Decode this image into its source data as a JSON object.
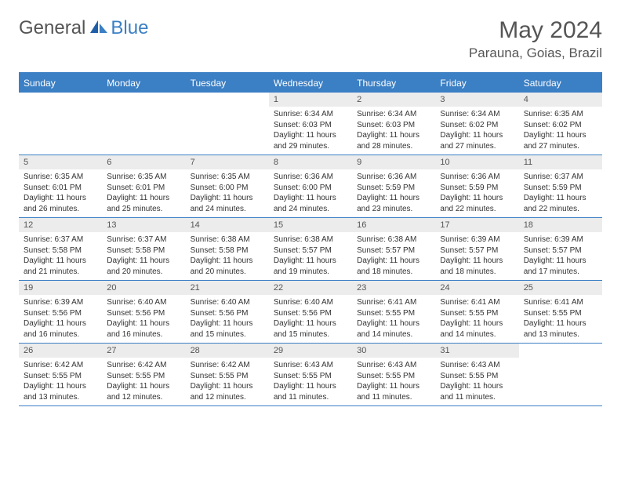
{
  "brand": {
    "part1": "General",
    "part2": "Blue"
  },
  "title": "May 2024",
  "location": "Parauna, Goias, Brazil",
  "colors": {
    "accent": "#3b7fc4",
    "text_muted": "#555555",
    "text_body": "#333333",
    "day_num_bg": "#ececec",
    "background": "#ffffff"
  },
  "day_headers": [
    "Sunday",
    "Monday",
    "Tuesday",
    "Wednesday",
    "Thursday",
    "Friday",
    "Saturday"
  ],
  "weeks": [
    [
      {
        "empty": true
      },
      {
        "empty": true
      },
      {
        "empty": true
      },
      {
        "num": "1",
        "sunrise": "Sunrise: 6:34 AM",
        "sunset": "Sunset: 6:03 PM",
        "day1": "Daylight: 11 hours",
        "day2": "and 29 minutes."
      },
      {
        "num": "2",
        "sunrise": "Sunrise: 6:34 AM",
        "sunset": "Sunset: 6:03 PM",
        "day1": "Daylight: 11 hours",
        "day2": "and 28 minutes."
      },
      {
        "num": "3",
        "sunrise": "Sunrise: 6:34 AM",
        "sunset": "Sunset: 6:02 PM",
        "day1": "Daylight: 11 hours",
        "day2": "and 27 minutes."
      },
      {
        "num": "4",
        "sunrise": "Sunrise: 6:35 AM",
        "sunset": "Sunset: 6:02 PM",
        "day1": "Daylight: 11 hours",
        "day2": "and 27 minutes."
      }
    ],
    [
      {
        "num": "5",
        "sunrise": "Sunrise: 6:35 AM",
        "sunset": "Sunset: 6:01 PM",
        "day1": "Daylight: 11 hours",
        "day2": "and 26 minutes."
      },
      {
        "num": "6",
        "sunrise": "Sunrise: 6:35 AM",
        "sunset": "Sunset: 6:01 PM",
        "day1": "Daylight: 11 hours",
        "day2": "and 25 minutes."
      },
      {
        "num": "7",
        "sunrise": "Sunrise: 6:35 AM",
        "sunset": "Sunset: 6:00 PM",
        "day1": "Daylight: 11 hours",
        "day2": "and 24 minutes."
      },
      {
        "num": "8",
        "sunrise": "Sunrise: 6:36 AM",
        "sunset": "Sunset: 6:00 PM",
        "day1": "Daylight: 11 hours",
        "day2": "and 24 minutes."
      },
      {
        "num": "9",
        "sunrise": "Sunrise: 6:36 AM",
        "sunset": "Sunset: 5:59 PM",
        "day1": "Daylight: 11 hours",
        "day2": "and 23 minutes."
      },
      {
        "num": "10",
        "sunrise": "Sunrise: 6:36 AM",
        "sunset": "Sunset: 5:59 PM",
        "day1": "Daylight: 11 hours",
        "day2": "and 22 minutes."
      },
      {
        "num": "11",
        "sunrise": "Sunrise: 6:37 AM",
        "sunset": "Sunset: 5:59 PM",
        "day1": "Daylight: 11 hours",
        "day2": "and 22 minutes."
      }
    ],
    [
      {
        "num": "12",
        "sunrise": "Sunrise: 6:37 AM",
        "sunset": "Sunset: 5:58 PM",
        "day1": "Daylight: 11 hours",
        "day2": "and 21 minutes."
      },
      {
        "num": "13",
        "sunrise": "Sunrise: 6:37 AM",
        "sunset": "Sunset: 5:58 PM",
        "day1": "Daylight: 11 hours",
        "day2": "and 20 minutes."
      },
      {
        "num": "14",
        "sunrise": "Sunrise: 6:38 AM",
        "sunset": "Sunset: 5:58 PM",
        "day1": "Daylight: 11 hours",
        "day2": "and 20 minutes."
      },
      {
        "num": "15",
        "sunrise": "Sunrise: 6:38 AM",
        "sunset": "Sunset: 5:57 PM",
        "day1": "Daylight: 11 hours",
        "day2": "and 19 minutes."
      },
      {
        "num": "16",
        "sunrise": "Sunrise: 6:38 AM",
        "sunset": "Sunset: 5:57 PM",
        "day1": "Daylight: 11 hours",
        "day2": "and 18 minutes."
      },
      {
        "num": "17",
        "sunrise": "Sunrise: 6:39 AM",
        "sunset": "Sunset: 5:57 PM",
        "day1": "Daylight: 11 hours",
        "day2": "and 18 minutes."
      },
      {
        "num": "18",
        "sunrise": "Sunrise: 6:39 AM",
        "sunset": "Sunset: 5:57 PM",
        "day1": "Daylight: 11 hours",
        "day2": "and 17 minutes."
      }
    ],
    [
      {
        "num": "19",
        "sunrise": "Sunrise: 6:39 AM",
        "sunset": "Sunset: 5:56 PM",
        "day1": "Daylight: 11 hours",
        "day2": "and 16 minutes."
      },
      {
        "num": "20",
        "sunrise": "Sunrise: 6:40 AM",
        "sunset": "Sunset: 5:56 PM",
        "day1": "Daylight: 11 hours",
        "day2": "and 16 minutes."
      },
      {
        "num": "21",
        "sunrise": "Sunrise: 6:40 AM",
        "sunset": "Sunset: 5:56 PM",
        "day1": "Daylight: 11 hours",
        "day2": "and 15 minutes."
      },
      {
        "num": "22",
        "sunrise": "Sunrise: 6:40 AM",
        "sunset": "Sunset: 5:56 PM",
        "day1": "Daylight: 11 hours",
        "day2": "and 15 minutes."
      },
      {
        "num": "23",
        "sunrise": "Sunrise: 6:41 AM",
        "sunset": "Sunset: 5:55 PM",
        "day1": "Daylight: 11 hours",
        "day2": "and 14 minutes."
      },
      {
        "num": "24",
        "sunrise": "Sunrise: 6:41 AM",
        "sunset": "Sunset: 5:55 PM",
        "day1": "Daylight: 11 hours",
        "day2": "and 14 minutes."
      },
      {
        "num": "25",
        "sunrise": "Sunrise: 6:41 AM",
        "sunset": "Sunset: 5:55 PM",
        "day1": "Daylight: 11 hours",
        "day2": "and 13 minutes."
      }
    ],
    [
      {
        "num": "26",
        "sunrise": "Sunrise: 6:42 AM",
        "sunset": "Sunset: 5:55 PM",
        "day1": "Daylight: 11 hours",
        "day2": "and 13 minutes."
      },
      {
        "num": "27",
        "sunrise": "Sunrise: 6:42 AM",
        "sunset": "Sunset: 5:55 PM",
        "day1": "Daylight: 11 hours",
        "day2": "and 12 minutes."
      },
      {
        "num": "28",
        "sunrise": "Sunrise: 6:42 AM",
        "sunset": "Sunset: 5:55 PM",
        "day1": "Daylight: 11 hours",
        "day2": "and 12 minutes."
      },
      {
        "num": "29",
        "sunrise": "Sunrise: 6:43 AM",
        "sunset": "Sunset: 5:55 PM",
        "day1": "Daylight: 11 hours",
        "day2": "and 11 minutes."
      },
      {
        "num": "30",
        "sunrise": "Sunrise: 6:43 AM",
        "sunset": "Sunset: 5:55 PM",
        "day1": "Daylight: 11 hours",
        "day2": "and 11 minutes."
      },
      {
        "num": "31",
        "sunrise": "Sunrise: 6:43 AM",
        "sunset": "Sunset: 5:55 PM",
        "day1": "Daylight: 11 hours",
        "day2": "and 11 minutes."
      },
      {
        "empty": true
      }
    ]
  ]
}
